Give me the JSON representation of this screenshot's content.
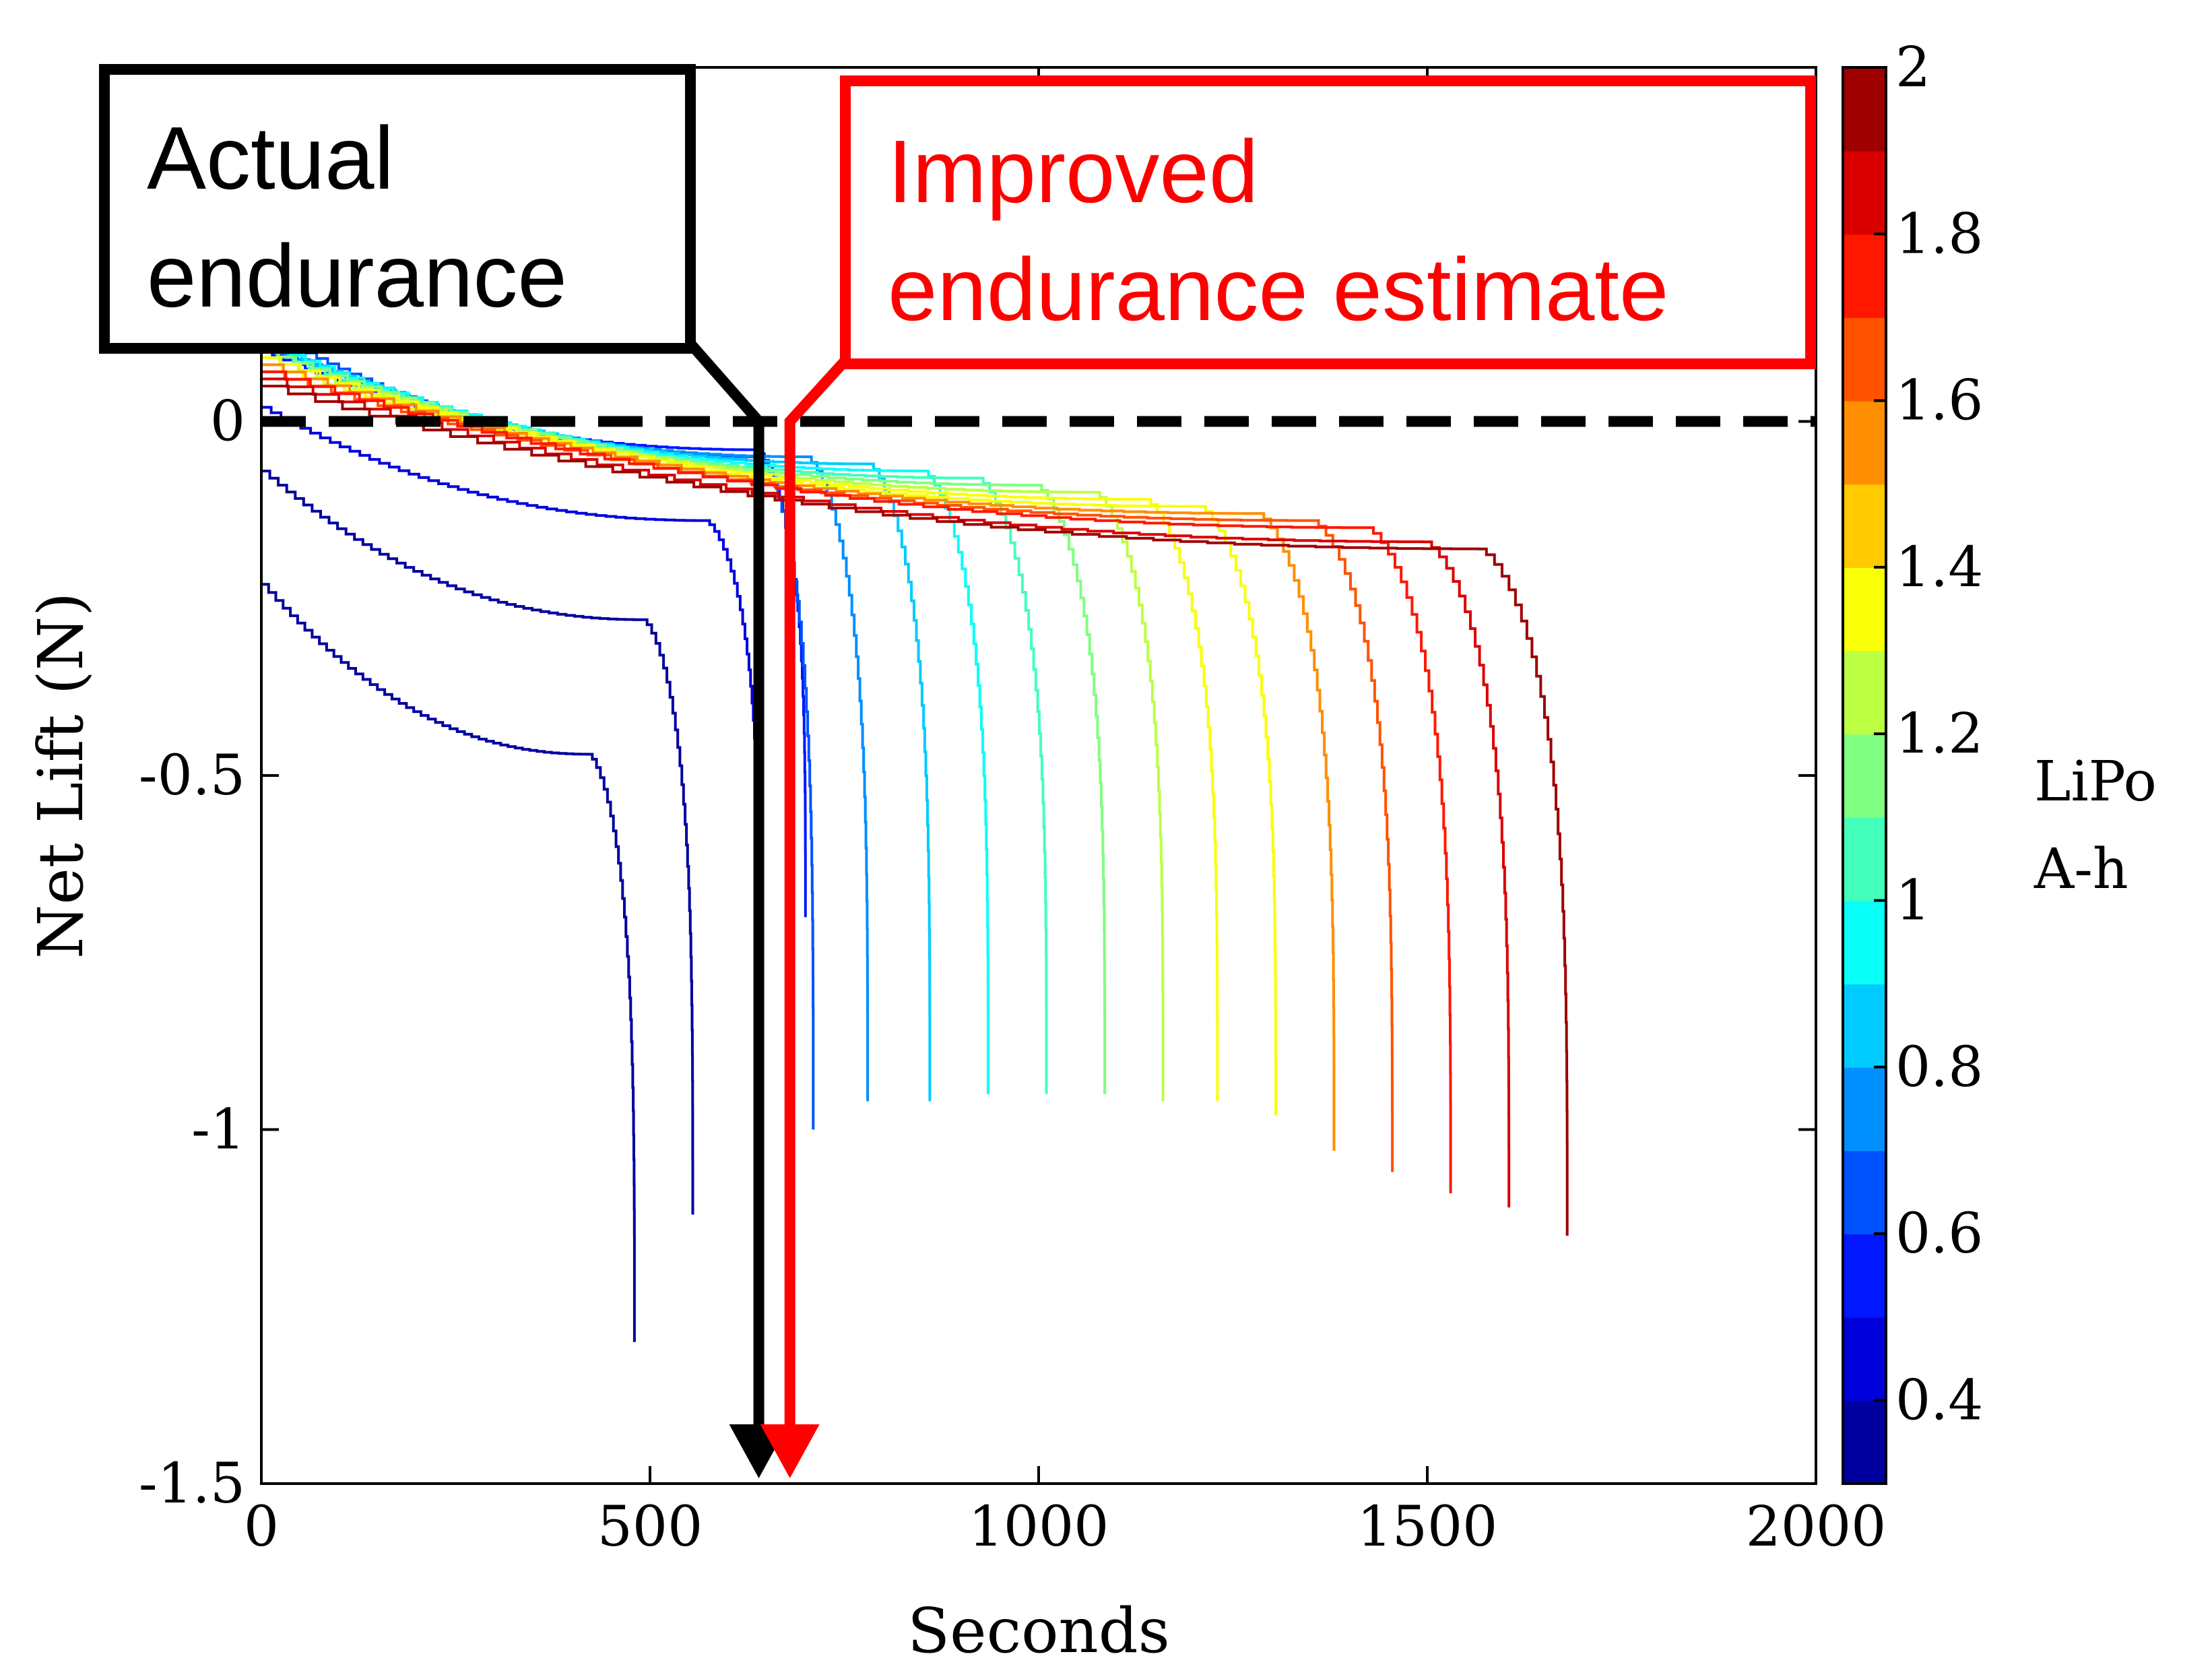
{
  "chart_data": {
    "type": "line",
    "title": "",
    "xlabel": "Seconds",
    "ylabel": "Net Lift (N)",
    "xlim": [
      0,
      2000
    ],
    "ylim": [
      -1.5,
      0.5
    ],
    "xticks": [
      {
        "value": 0,
        "label": "0"
      },
      {
        "value": 500,
        "label": "500"
      },
      {
        "value": 1000,
        "label": "1000"
      },
      {
        "value": 1500,
        "label": "1500"
      },
      {
        "value": 2000,
        "label": "2000"
      }
    ],
    "yticks": [
      {
        "value": 0,
        "label": "0"
      },
      {
        "value": -0.5,
        "label": "-0.5"
      },
      {
        "value": -1,
        "label": "-1"
      },
      {
        "value": -1.5,
        "label": "-1.5"
      }
    ],
    "grid": false,
    "zero_line": {
      "y": 0,
      "style": "dashed",
      "color": "#000000"
    },
    "colorbar": {
      "title_lines": [
        "LiPo",
        "A-h"
      ],
      "range": [
        0.3,
        2.0
      ],
      "levels": 17,
      "colormap": "jet",
      "ticks": [
        {
          "value": 0.4,
          "label": "0.4"
        },
        {
          "value": 0.6,
          "label": "0.6"
        },
        {
          "value": 0.8,
          "label": "0.8"
        },
        {
          "value": 1.0,
          "label": "1"
        },
        {
          "value": 1.2,
          "label": "1.2"
        },
        {
          "value": 1.4,
          "label": "1.4"
        },
        {
          "value": 1.6,
          "label": "1.6"
        },
        {
          "value": 1.8,
          "label": "1.8"
        },
        {
          "value": 2.0,
          "label": "2"
        }
      ]
    },
    "series": [
      {
        "capacity": 0.3,
        "start_y": -0.23,
        "plateau_y": -0.47,
        "knee_x": 420,
        "end_x": 480,
        "end_y": -1.3
      },
      {
        "capacity": 0.35,
        "start_y": -0.07,
        "plateau_y": -0.28,
        "knee_x": 490,
        "end_x": 555,
        "end_y": -1.12
      },
      {
        "capacity": 0.4,
        "start_y": 0.02,
        "plateau_y": -0.14,
        "knee_x": 570,
        "end_x": 640,
        "end_y": -0.82
      },
      {
        "capacity": 0.5,
        "start_y": 0.1,
        "plateau_y": -0.04,
        "knee_x": 635,
        "end_x": 700,
        "end_y": -0.7
      },
      {
        "capacity": 0.6,
        "start_y": 0.13,
        "plateau_y": -0.05,
        "knee_x": 640,
        "end_x": 710,
        "end_y": -1.0
      },
      {
        "capacity": 0.7,
        "start_y": 0.11,
        "plateau_y": -0.05,
        "knee_x": 700,
        "end_x": 780,
        "end_y": -0.96
      },
      {
        "capacity": 0.8,
        "start_y": 0.11,
        "plateau_y": -0.06,
        "knee_x": 780,
        "end_x": 860,
        "end_y": -0.96
      },
      {
        "capacity": 0.9,
        "start_y": 0.11,
        "plateau_y": -0.07,
        "knee_x": 850,
        "end_x": 935,
        "end_y": -0.95
      },
      {
        "capacity": 1.0,
        "start_y": 0.1,
        "plateau_y": -0.08,
        "knee_x": 920,
        "end_x": 1010,
        "end_y": -0.95
      },
      {
        "capacity": 1.1,
        "start_y": 0.1,
        "plateau_y": -0.09,
        "knee_x": 995,
        "end_x": 1085,
        "end_y": -0.95
      },
      {
        "capacity": 1.2,
        "start_y": 0.09,
        "plateau_y": -0.1,
        "knee_x": 1070,
        "end_x": 1160,
        "end_y": -0.96
      },
      {
        "capacity": 1.3,
        "start_y": 0.09,
        "plateau_y": -0.11,
        "knee_x": 1135,
        "end_x": 1230,
        "end_y": -0.96
      },
      {
        "capacity": 1.4,
        "start_y": 0.08,
        "plateau_y": -0.12,
        "knee_x": 1205,
        "end_x": 1305,
        "end_y": -0.98
      },
      {
        "capacity": 1.5,
        "start_y": 0.08,
        "plateau_y": -0.13,
        "knee_x": 1280,
        "end_x": 1380,
        "end_y": -1.03
      },
      {
        "capacity": 1.6,
        "start_y": 0.07,
        "plateau_y": -0.14,
        "knee_x": 1350,
        "end_x": 1455,
        "end_y": -1.06
      },
      {
        "capacity": 1.7,
        "start_y": 0.07,
        "plateau_y": -0.15,
        "knee_x": 1420,
        "end_x": 1530,
        "end_y": -1.09
      },
      {
        "capacity": 1.85,
        "start_y": 0.06,
        "plateau_y": -0.17,
        "knee_x": 1495,
        "end_x": 1605,
        "end_y": -1.11
      },
      {
        "capacity": 2.0,
        "start_y": 0.05,
        "plateau_y": -0.18,
        "knee_x": 1565,
        "end_x": 1680,
        "end_y": -1.15
      }
    ],
    "annotations": [
      {
        "id": "actual",
        "lines": [
          "Actual",
          "endurance"
        ],
        "color": "#000000",
        "text_color": "#000000",
        "marker_x": 640
      },
      {
        "id": "improved",
        "lines": [
          "Improved",
          "endurance estimate"
        ],
        "color": "#ff0000",
        "text_color": "#ff0000",
        "marker_x": 680
      }
    ]
  }
}
